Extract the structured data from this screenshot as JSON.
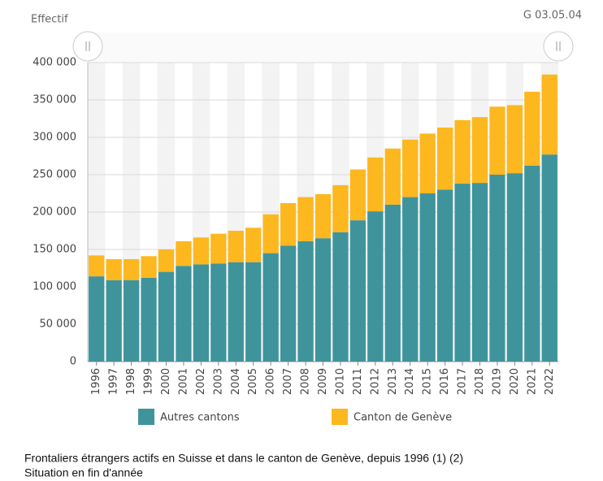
{
  "chart_data": {
    "type": "stacked_bar",
    "y_label": "Effectif",
    "code": "G 03.05.04",
    "title": "Frontaliers étrangers actifs en Suisse et dans le canton de Genève, depuis 1996 (1) (2)",
    "subtitle": "Situation en fin d'année",
    "categories": [
      "1996",
      "1997",
      "1998",
      "1999",
      "2000",
      "2001",
      "2002",
      "2003",
      "2004",
      "2005",
      "2006",
      "2007",
      "2008",
      "2009",
      "2010",
      "2011",
      "2012",
      "2013",
      "2014",
      "2015",
      "2016",
      "2017",
      "2018",
      "2019",
      "2020",
      "2021",
      "2022"
    ],
    "series": [
      {
        "name": "Autres cantons",
        "color": "#3f949c",
        "values": [
          114000,
          109000,
          109000,
          112000,
          120000,
          128000,
          130000,
          131000,
          133000,
          133000,
          145000,
          155000,
          161000,
          165000,
          173000,
          189000,
          201000,
          210000,
          220000,
          225000,
          230000,
          238000,
          239000,
          250000,
          252000,
          262000,
          277000
        ]
      },
      {
        "name": "Canton de Genève",
        "color": "#fdb71f",
        "values": [
          28000,
          28000,
          28000,
          29000,
          30000,
          33000,
          36000,
          40000,
          42000,
          46000,
          52000,
          57000,
          59000,
          59000,
          63000,
          68000,
          72000,
          75000,
          77000,
          80000,
          83000,
          85000,
          88000,
          91000,
          91000,
          99000,
          107000
        ]
      }
    ],
    "ylim": [
      0,
      400000
    ],
    "yticks": [
      0,
      {
        "value": 50000,
        "label": "50 000"
      },
      {
        "value": 100000,
        "label": "100 000"
      },
      {
        "value": 150000,
        "label": "150 000"
      },
      {
        "value": 200000,
        "label": "200 000"
      },
      {
        "value": 250000,
        "label": "250 000"
      },
      {
        "value": 300000,
        "label": "300 000"
      },
      {
        "value": 350000,
        "label": "350 000"
      },
      {
        "value": 400000,
        "label": "400 000"
      }
    ],
    "grid": true
  }
}
